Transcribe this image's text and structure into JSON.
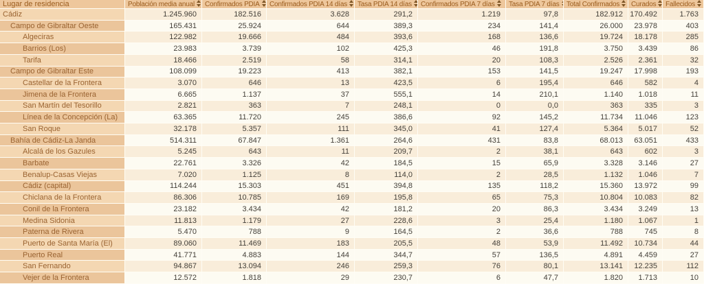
{
  "colors": {
    "header_bg": "#eec79c",
    "header_text": "#9a5c1e",
    "name_col_odd_bg": "#f4d7b2",
    "name_col_even_bg": "#ebc59b",
    "data_odd_bg": "#f9edda",
    "data_even_bg": "#fdfbf2",
    "name_text": "#9a6331",
    "number_text": "#433f38",
    "cell_border": "#fffdf5"
  },
  "table": {
    "columns": [
      {
        "label": "Lugar de residencia",
        "sortable": false
      },
      {
        "label": "Población media anual",
        "sortable": true
      },
      {
        "label": "Confirmados PDIA",
        "sortable": true
      },
      {
        "label": "Confirmados PDIA 14 días",
        "sortable": true
      },
      {
        "label": "Tasa PDIA 14 días",
        "sortable": true
      },
      {
        "label": "Confirmados PDIA 7 días",
        "sortable": true
      },
      {
        "label": "Tasa PDIA 7 días",
        "sortable": true
      },
      {
        "label": "Total Confirmados",
        "sortable": true
      },
      {
        "label": "Curados",
        "sortable": true
      },
      {
        "label": "Fallecidos",
        "sortable": true
      }
    ],
    "sort_icon": "sort-updown-icon",
    "rows": [
      {
        "name": "Cádiz",
        "level": 0,
        "values": [
          "1.245.960",
          "182.516",
          "3.628",
          "291,2",
          "1.219",
          "97,8",
          "182.912",
          "170.492",
          "1.763"
        ]
      },
      {
        "name": "Campo de Gibraltar Oeste",
        "level": 1,
        "values": [
          "165.431",
          "25.924",
          "644",
          "389,3",
          "234",
          "141,4",
          "26.000",
          "23.978",
          "403"
        ]
      },
      {
        "name": "Algeciras",
        "level": 2,
        "values": [
          "122.982",
          "19.666",
          "484",
          "393,6",
          "168",
          "136,6",
          "19.724",
          "18.178",
          "285"
        ]
      },
      {
        "name": "Barrios (Los)",
        "level": 2,
        "values": [
          "23.983",
          "3.739",
          "102",
          "425,3",
          "46",
          "191,8",
          "3.750",
          "3.439",
          "86"
        ]
      },
      {
        "name": "Tarifa",
        "level": 2,
        "values": [
          "18.466",
          "2.519",
          "58",
          "314,1",
          "20",
          "108,3",
          "2.526",
          "2.361",
          "32"
        ]
      },
      {
        "name": "Campo de Gibraltar Este",
        "level": 1,
        "values": [
          "108.099",
          "19.223",
          "413",
          "382,1",
          "153",
          "141,5",
          "19.247",
          "17.998",
          "193"
        ]
      },
      {
        "name": "Castellar de la Frontera",
        "level": 2,
        "values": [
          "3.070",
          "646",
          "13",
          "423,5",
          "6",
          "195,4",
          "646",
          "582",
          "4"
        ]
      },
      {
        "name": "Jimena de la Frontera",
        "level": 2,
        "values": [
          "6.665",
          "1.137",
          "37",
          "555,1",
          "14",
          "210,1",
          "1.140",
          "1.018",
          "11"
        ]
      },
      {
        "name": "San Martín del Tesorillo",
        "level": 2,
        "values": [
          "2.821",
          "363",
          "7",
          "248,1",
          "0",
          "0,0",
          "363",
          "335",
          "3"
        ]
      },
      {
        "name": "Línea de la Concepción (La)",
        "level": 2,
        "values": [
          "63.365",
          "11.720",
          "245",
          "386,6",
          "92",
          "145,2",
          "11.734",
          "11.046",
          "123"
        ]
      },
      {
        "name": "San Roque",
        "level": 2,
        "values": [
          "32.178",
          "5.357",
          "111",
          "345,0",
          "41",
          "127,4",
          "5.364",
          "5.017",
          "52"
        ]
      },
      {
        "name": "Bahía de Cádiz-La Janda",
        "level": 1,
        "values": [
          "514.311",
          "67.847",
          "1.361",
          "264,6",
          "431",
          "83,8",
          "68.013",
          "63.051",
          "433"
        ]
      },
      {
        "name": "Alcalá de los Gazules",
        "level": 2,
        "values": [
          "5.245",
          "643",
          "11",
          "209,7",
          "2",
          "38,1",
          "643",
          "602",
          "3"
        ]
      },
      {
        "name": "Barbate",
        "level": 2,
        "values": [
          "22.761",
          "3.326",
          "42",
          "184,5",
          "15",
          "65,9",
          "3.328",
          "3.146",
          "27"
        ]
      },
      {
        "name": "Benalup-Casas Viejas",
        "level": 2,
        "values": [
          "7.020",
          "1.125",
          "8",
          "114,0",
          "2",
          "28,5",
          "1.132",
          "1.046",
          "7"
        ]
      },
      {
        "name": "Cádiz (capital)",
        "level": 2,
        "values": [
          "114.244",
          "15.303",
          "451",
          "394,8",
          "135",
          "118,2",
          "15.360",
          "13.972",
          "99"
        ]
      },
      {
        "name": "Chiclana de la Frontera",
        "level": 2,
        "values": [
          "86.306",
          "10.785",
          "169",
          "195,8",
          "65",
          "75,3",
          "10.804",
          "10.083",
          "82"
        ]
      },
      {
        "name": "Conil de la Frontera",
        "level": 2,
        "values": [
          "23.182",
          "3.434",
          "42",
          "181,2",
          "20",
          "86,3",
          "3.434",
          "3.249",
          "13"
        ]
      },
      {
        "name": "Medina Sidonia",
        "level": 2,
        "values": [
          "11.813",
          "1.179",
          "27",
          "228,6",
          "3",
          "25,4",
          "1.180",
          "1.067",
          "1"
        ]
      },
      {
        "name": "Paterna de Rivera",
        "level": 2,
        "values": [
          "5.470",
          "788",
          "9",
          "164,5",
          "2",
          "36,6",
          "788",
          "745",
          "8"
        ]
      },
      {
        "name": "Puerto de Santa María (El)",
        "level": 2,
        "values": [
          "89.060",
          "11.469",
          "183",
          "205,5",
          "48",
          "53,9",
          "11.492",
          "10.734",
          "44"
        ]
      },
      {
        "name": "Puerto Real",
        "level": 2,
        "values": [
          "41.771",
          "4.883",
          "144",
          "344,7",
          "57",
          "136,5",
          "4.891",
          "4.459",
          "27"
        ]
      },
      {
        "name": "San Fernando",
        "level": 2,
        "values": [
          "94.867",
          "13.094",
          "246",
          "259,3",
          "76",
          "80,1",
          "13.141",
          "12.235",
          "112"
        ]
      },
      {
        "name": "Vejer de la Frontera",
        "level": 2,
        "values": [
          "12.572",
          "1.818",
          "29",
          "230,7",
          "6",
          "47,7",
          "1.820",
          "1.713",
          "10"
        ]
      }
    ]
  }
}
